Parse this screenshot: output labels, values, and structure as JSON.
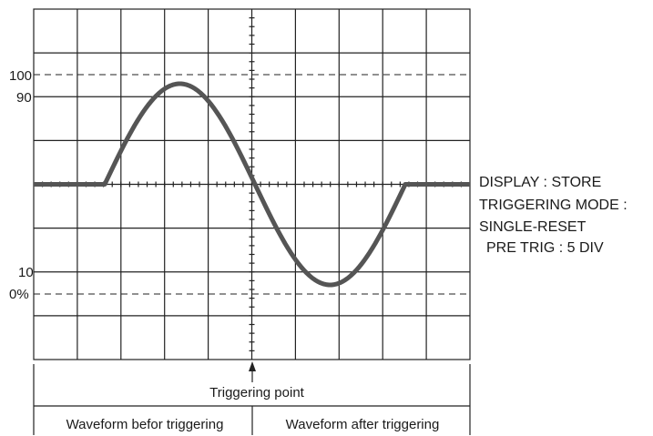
{
  "scale_labels": [
    "100",
    "90",
    "10",
    "0%"
  ],
  "settings": [
    "DISPLAY : STORE",
    "TRIGGERING MODE :",
    "SINGLE-RESET",
    "PRE TRIG : 5 DIV"
  ],
  "trigger_label": "Triggering point",
  "bottom_labels": [
    "Waveform befor triggering",
    "Waveform after triggering"
  ]
}
